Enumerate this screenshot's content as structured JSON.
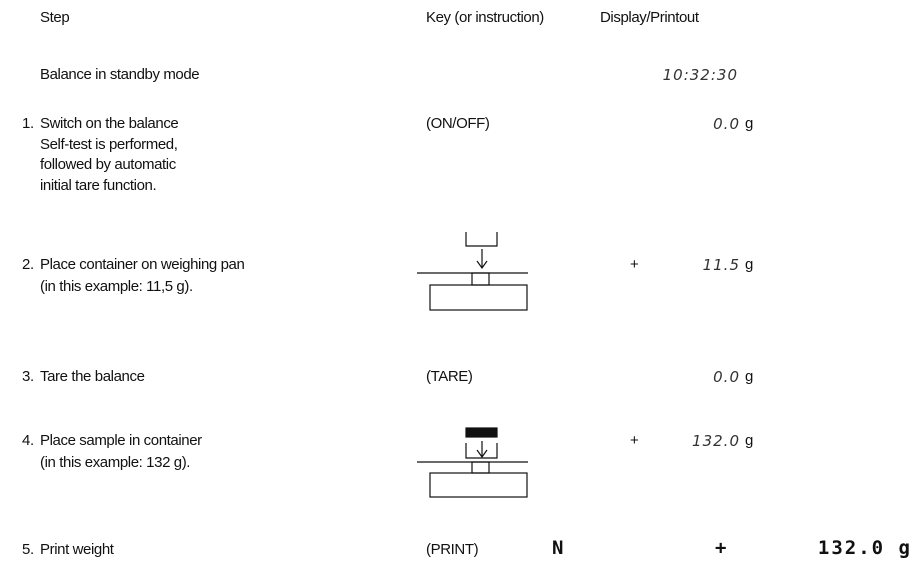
{
  "header": {
    "step": "Step",
    "key": "Key (or instruction)",
    "display": "Display/Printout"
  },
  "steps": [
    {
      "text": [
        "Balance in standby mode"
      ],
      "display": "10:32:30"
    },
    {
      "number": "1.",
      "text": [
        "Switch on the balance",
        "Self-test is performed,",
        "followed by automatic",
        "initial tare function."
      ],
      "key": "(ON/OFF)",
      "display": "0.0",
      "unit": "g"
    },
    {
      "number": "2.",
      "text": [
        "Place container on weighing pan",
        "(in this example: 11,5 g)."
      ],
      "sign": "+",
      "display": "11.5",
      "unit": "g"
    },
    {
      "number": "3.",
      "text": [
        "Tare the balance"
      ],
      "key": "(TARE)",
      "display": "0.0",
      "unit": "g"
    },
    {
      "number": "4.",
      "text": [
        "Place sample in container",
        "(in this example: 132 g)."
      ],
      "sign": "+",
      "display": "132.0",
      "unit": "g"
    },
    {
      "number": "5.",
      "text": [
        "Print weight"
      ],
      "key": "(PRINT)",
      "printout": [
        "N",
        "+",
        "132.0 g"
      ]
    }
  ]
}
